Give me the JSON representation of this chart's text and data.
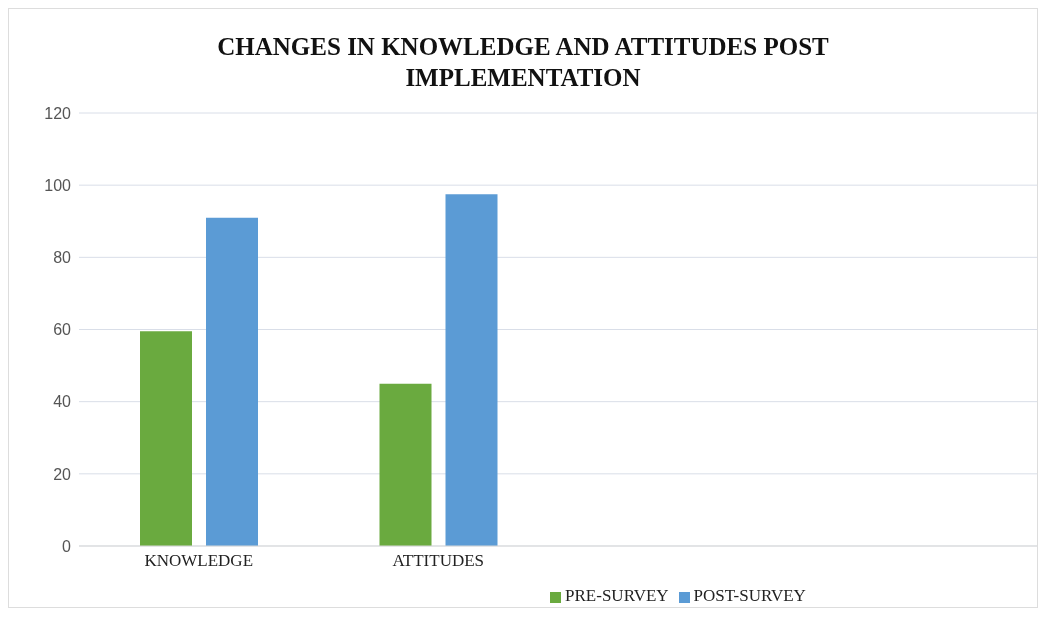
{
  "chart_data": {
    "type": "bar",
    "title": "CHANGES IN KNOWLEDGE AND ATTITUDES POST IMPLEMENTATION",
    "categories": [
      "KNOWLEDGE",
      "ATTITUDES",
      null,
      null
    ],
    "series": [
      {
        "name": "PRE-SURVEY",
        "color": "#6aaa3f",
        "values": [
          59.5,
          45,
          null,
          null
        ]
      },
      {
        "name": "POST-SURVEY",
        "color": "#5b9bd5",
        "values": [
          91,
          97.5,
          null,
          null
        ]
      }
    ],
    "ylim": [
      0,
      120
    ],
    "yticks": [
      0,
      20,
      40,
      60,
      80,
      100,
      120
    ],
    "grid": "y",
    "legend": "bottom"
  }
}
